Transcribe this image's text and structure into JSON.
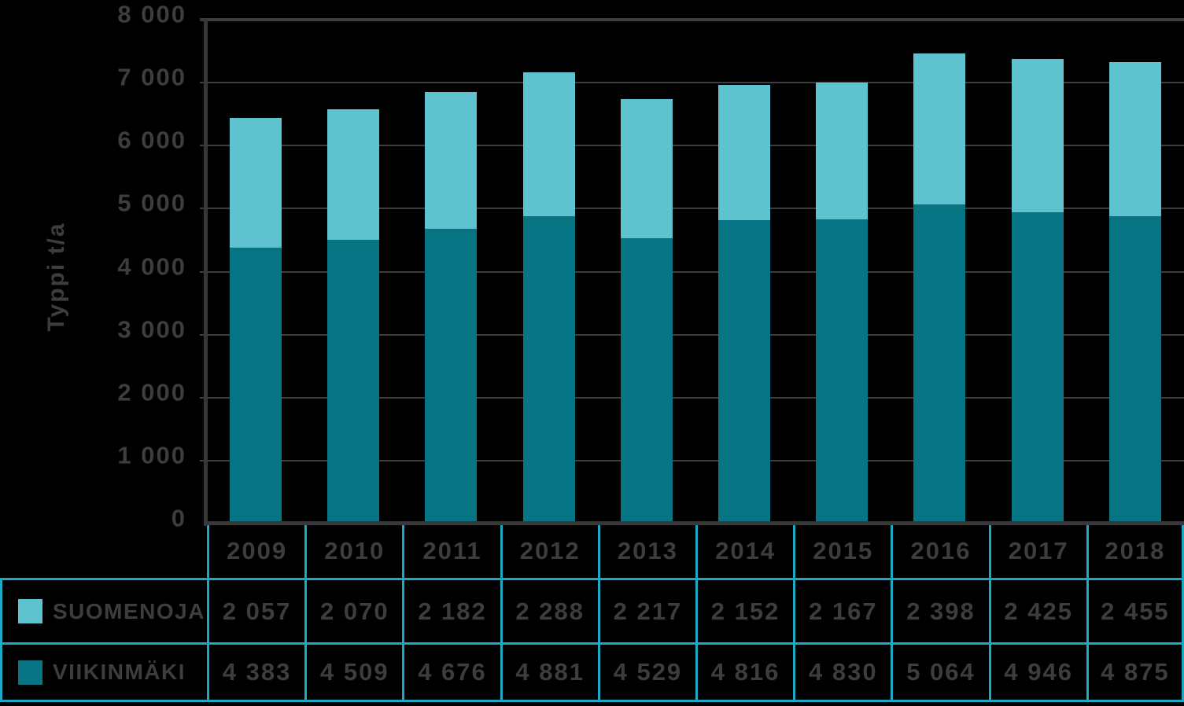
{
  "figure": {
    "background": "#000000",
    "text_color": "#3d3d3d"
  },
  "chart_data": {
    "type": "bar",
    "stacked": true,
    "title": "",
    "xlabel": "",
    "ylabel": "Typpi t/a",
    "ylim": [
      0,
      8000
    ],
    "ytick_step": 1000,
    "grid": true,
    "legend_position": "table-left-bottom",
    "categories": [
      "2009",
      "2010",
      "2011",
      "2012",
      "2013",
      "2014",
      "2015",
      "2016",
      "2017",
      "2018"
    ],
    "series": [
      {
        "name": "SUOMENOJA",
        "color": "#5fc3cf",
        "values": [
          2057,
          2070,
          2182,
          2288,
          2217,
          2152,
          2167,
          2398,
          2425,
          2455
        ]
      },
      {
        "name": "VIIKINMÄKI",
        "color": "#077483",
        "values": [
          4383,
          4509,
          4676,
          4881,
          4529,
          4816,
          4830,
          5064,
          4946,
          4875
        ]
      }
    ],
    "yticks": [
      {
        "label": "8 000",
        "value": 8000
      },
      {
        "label": "7 000",
        "value": 7000
      },
      {
        "label": "6 000",
        "value": 6000
      },
      {
        "label": "5 000",
        "value": 5000
      },
      {
        "label": "4 000",
        "value": 4000
      },
      {
        "label": "3 000",
        "value": 3000
      },
      {
        "label": "2 000",
        "value": 2000
      },
      {
        "label": "1 000",
        "value": 1000
      },
      {
        "label": "0",
        "value": 0
      }
    ]
  },
  "table": {
    "year_header": [
      "2009",
      "2010",
      "2011",
      "2012",
      "2013",
      "2014",
      "2015",
      "2016",
      "2017",
      "2018"
    ],
    "rows": [
      {
        "label": "SUOMENOJA",
        "swatch_color": "#5fc3cf",
        "values": [
          "2 057",
          "2 070",
          "2 182",
          "2 288",
          "2 217",
          "2 152",
          "2 167",
          "2 398",
          "2 425",
          "2 455"
        ]
      },
      {
        "label": "VIIKINMÄKI",
        "swatch_color": "#077483",
        "values": [
          "4 383",
          "4 509",
          "4 676",
          "4 881",
          "4 529",
          "4 816",
          "4 830",
          "5 064",
          "4 946",
          "4 875"
        ]
      }
    ],
    "border_color": "#1aabc2"
  }
}
